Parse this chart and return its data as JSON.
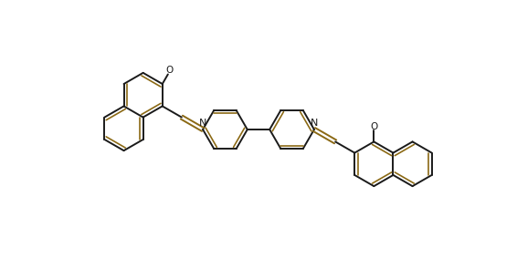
{
  "bg_color": "#ffffff",
  "line_color": "#1a1a1a",
  "double_bond_color": "#8B6914",
  "text_color": "#1a1a1a",
  "lw": 1.4,
  "figsize": [
    5.66,
    2.84
  ],
  "dpi": 100,
  "font_size_N": 8,
  "font_size_O": 7.5,
  "R": 0.62,
  "xlim": [
    -7.2,
    7.2
  ],
  "ylim": [
    -3.0,
    3.0
  ]
}
